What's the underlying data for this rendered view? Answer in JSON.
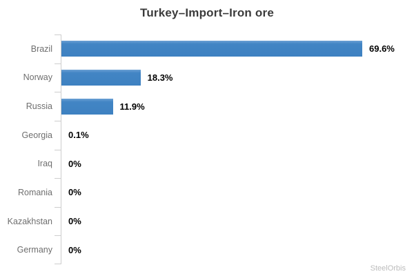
{
  "watermark": "SteelOrbis",
  "colors": {
    "background": "#ffffff",
    "bar": "#4285c4",
    "bar_gradient_top": "#6ba0d4",
    "bar_gradient_bottom": "#3e81c1",
    "axis": "#cdcdcd",
    "title_text": "#3b3b3b",
    "category_text": "#6e6e6e",
    "value_text": "#000000",
    "watermark_text": "#bcbcbc"
  },
  "chart_data": {
    "type": "bar",
    "orientation": "horizontal",
    "title": "Turkey–Import–Iron ore",
    "xlabel": "",
    "ylabel": "",
    "categories": [
      "Brazil",
      "Norway",
      "Russia",
      "Georgia",
      "Iraq",
      "Romania",
      "Kazakhstan",
      "Germany"
    ],
    "values": [
      69.6,
      18.3,
      11.9,
      0.1,
      0,
      0,
      0,
      0
    ],
    "value_labels": [
      "69.6%",
      "18.3%",
      "11.9%",
      "0.1%",
      "0%",
      "0%",
      "0%",
      "0%"
    ],
    "grid": false,
    "legend": false,
    "x_axis_visible": false,
    "y_axis_visible": true
  }
}
